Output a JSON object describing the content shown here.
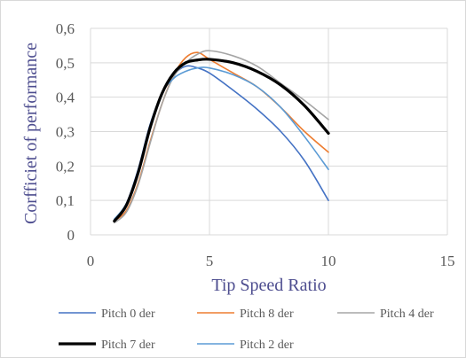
{
  "chart_data": {
    "type": "line",
    "xlabel": "Tip Speed Ratio",
    "ylabel": "Corfficiet of performance",
    "xlim": [
      0,
      15
    ],
    "ylim": [
      0,
      0.6
    ],
    "x_ticks": [
      "0",
      "5",
      "10",
      "15"
    ],
    "y_ticks": [
      "0",
      "0,1",
      "0,2",
      "0,3",
      "0,4",
      "0,5",
      "0,6"
    ],
    "grid": "vertical and horizontal",
    "legend_position": "bottom",
    "x": [
      1,
      1.5,
      2,
      2.5,
      3,
      3.5,
      4,
      4.5,
      5,
      6,
      7,
      8,
      9,
      10
    ],
    "series": [
      {
        "name": "Pitch 0 der",
        "color": "#4472c4",
        "line_width": "thin",
        "values": [
          0.045,
          0.09,
          0.19,
          0.32,
          0.41,
          0.465,
          0.49,
          0.485,
          0.47,
          0.42,
          0.365,
          0.3,
          0.215,
          0.1
        ]
      },
      {
        "name": "Pitch 8 der",
        "color": "#ed7d31",
        "line_width": "thin",
        "values": [
          0.04,
          0.07,
          0.15,
          0.27,
          0.38,
          0.465,
          0.515,
          0.53,
          0.51,
          0.47,
          0.43,
          0.37,
          0.3,
          0.24
        ]
      },
      {
        "name": "Pitch 4 der",
        "color": "#a5a5a5",
        "line_width": "thin",
        "values": [
          0.035,
          0.065,
          0.145,
          0.265,
          0.38,
          0.46,
          0.5,
          0.525,
          0.535,
          0.52,
          0.49,
          0.44,
          0.39,
          0.335
        ]
      },
      {
        "name": "Pitch 7 der",
        "color": "#000000",
        "line_width": "thick",
        "values": [
          0.04,
          0.085,
          0.18,
          0.31,
          0.41,
          0.47,
          0.5,
          0.508,
          0.51,
          0.5,
          0.475,
          0.435,
          0.375,
          0.295
        ]
      },
      {
        "name": "Pitch 2 der",
        "color": "#5b9bd5",
        "line_width": "thin",
        "values": [
          0.045,
          0.09,
          0.18,
          0.31,
          0.41,
          0.455,
          0.475,
          0.485,
          0.485,
          0.465,
          0.43,
          0.37,
          0.285,
          0.19
        ]
      }
    ]
  }
}
